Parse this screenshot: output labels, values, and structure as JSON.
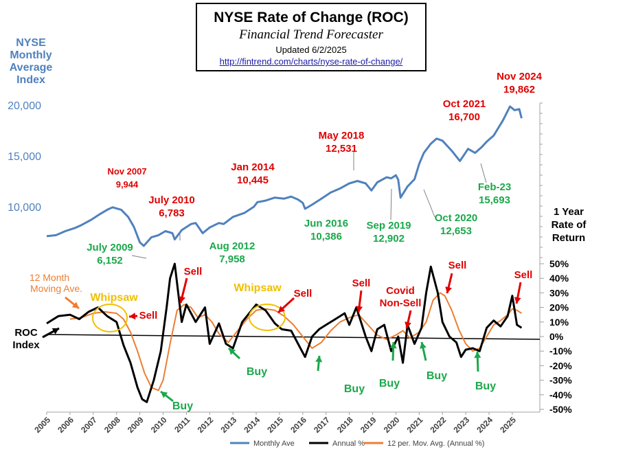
{
  "header": {
    "title": "NYSE  Rate of Change (ROC)",
    "subtitle": "Financial Trend Forecaster",
    "updated": "Updated 6/2/2025",
    "url": "http://fintrend.com/charts/nyse-rate-of-change/"
  },
  "colors": {
    "nyse": "#4f81bd",
    "roc": "#000000",
    "ma": "#ed7d31",
    "red": "#e00000",
    "green": "#1aa84a",
    "gold": "#f0c000",
    "axis": "#808080"
  },
  "chart_data": {
    "type": "line",
    "x_range": [
      2005,
      2025.8
    ],
    "x_tick_labels": [
      "2005",
      "2006",
      "2007",
      "2008",
      "2009",
      "2010",
      "2011",
      "2012",
      "2013",
      "2014",
      "2015",
      "2016",
      "2017",
      "2018",
      "2019",
      "2020",
      "2021",
      "2022",
      "2023",
      "2024",
      "2025"
    ],
    "top_axis": {
      "label": [
        "NYSE",
        "Monthly",
        "Average",
        "Index"
      ],
      "ticks": [
        "10,000",
        "15,000",
        "20,000"
      ],
      "tick_values": [
        10000,
        15000,
        20000
      ]
    },
    "bottom_axis": {
      "label": [
        "1 Year",
        "Rate of",
        "Return"
      ],
      "ticks": [
        "50%",
        "40%",
        "30%",
        "20%",
        "10%",
        "0%",
        "-10%",
        "-20%",
        "-30%",
        "-40%",
        "-50%"
      ],
      "tick_values": [
        50,
        40,
        30,
        20,
        10,
        0,
        -10,
        -20,
        -30,
        -40,
        -50
      ],
      "ylim": [
        -50,
        50
      ]
    },
    "series": [
      {
        "name": "Monthly Ave",
        "panel": "top",
        "color": "#4f81bd",
        "x": [
          2005.0,
          2005.4,
          2005.8,
          2006.2,
          2006.5,
          2006.9,
          2007.3,
          2007.6,
          2007.83,
          2008.2,
          2008.5,
          2008.75,
          2009.0,
          2009.17,
          2009.5,
          2009.8,
          2010.1,
          2010.4,
          2010.5,
          2010.8,
          2011.2,
          2011.4,
          2011.7,
          2012.0,
          2012.4,
          2012.6,
          2013.0,
          2013.5,
          2013.9,
          2014.05,
          2014.4,
          2014.8,
          2015.2,
          2015.5,
          2015.8,
          2016.0,
          2016.1,
          2016.4,
          2016.8,
          2017.2,
          2017.6,
          2018.0,
          2018.35,
          2018.7,
          2018.95,
          2019.2,
          2019.6,
          2019.8,
          2020.0,
          2020.1,
          2020.2,
          2020.5,
          2020.8,
          2021.0,
          2021.2,
          2021.5,
          2021.75,
          2022.0,
          2022.4,
          2022.75,
          2022.9,
          2023.1,
          2023.4,
          2023.7,
          2023.9,
          2024.2,
          2024.6,
          2024.9,
          2025.1,
          2025.3,
          2025.4
        ],
        "values": [
          7100,
          7200,
          7600,
          7900,
          8200,
          8700,
          9300,
          9700,
          9944,
          9700,
          9000,
          8000,
          6500,
          6152,
          7000,
          7200,
          7600,
          7400,
          6783,
          7700,
          8300,
          8400,
          7400,
          7958,
          8400,
          8300,
          9000,
          9400,
          10000,
          10445,
          10600,
          10900,
          10800,
          11000,
          10700,
          10386,
          9800,
          10200,
          10800,
          11400,
          11800,
          12300,
          12531,
          12300,
          11600,
          12400,
          12900,
          12800,
          13100,
          12653,
          10900,
          12000,
          12700,
          14200,
          15300,
          16200,
          16700,
          16500,
          15500,
          14500,
          15000,
          15693,
          15300,
          15900,
          16400,
          17000,
          18500,
          19862,
          19500,
          19600,
          18700
        ]
      },
      {
        "name": "Annual %",
        "panel": "bottom",
        "color": "#000000",
        "x": [
          2005.0,
          2005.5,
          2006.0,
          2006.4,
          2006.8,
          2007.2,
          2007.6,
          2008.0,
          2008.3,
          2008.6,
          2008.9,
          2009.1,
          2009.3,
          2009.6,
          2009.9,
          2010.15,
          2010.3,
          2010.5,
          2010.8,
          2011.0,
          2011.4,
          2011.8,
          2012.0,
          2012.4,
          2012.7,
          2013.0,
          2013.4,
          2013.8,
          2014.0,
          2014.4,
          2014.8,
          2015.1,
          2015.5,
          2015.9,
          2016.1,
          2016.4,
          2016.7,
          2017.0,
          2017.4,
          2017.8,
          2018.0,
          2018.3,
          2018.7,
          2018.95,
          2019.2,
          2019.5,
          2019.8,
          2020.1,
          2020.3,
          2020.5,
          2020.8,
          2021.1,
          2021.3,
          2021.5,
          2021.8,
          2022.0,
          2022.3,
          2022.6,
          2022.8,
          2023.0,
          2023.3,
          2023.6,
          2023.9,
          2024.2,
          2024.5,
          2024.8,
          2025.0,
          2025.2,
          2025.4
        ],
        "values": [
          9,
          14,
          15,
          12,
          17,
          20,
          14,
          10,
          -6,
          -18,
          -35,
          -43,
          -45,
          -30,
          -10,
          20,
          40,
          50,
          10,
          22,
          10,
          20,
          -5,
          9,
          -5,
          -8,
          10,
          18,
          22,
          18,
          9,
          5,
          4,
          -8,
          -14,
          0,
          5,
          8,
          12,
          16,
          8,
          20,
          0,
          -10,
          5,
          8,
          -10,
          0,
          -18,
          8,
          -5,
          6,
          30,
          48,
          30,
          10,
          0,
          -4,
          -14,
          -9,
          -8,
          -10,
          6,
          11,
          7,
          14,
          28,
          8,
          6
        ]
      },
      {
        "name": "12 per. Mov. Avg. (Annual %)",
        "panel": "bottom",
        "color": "#ed7d31",
        "x": [
          2006.0,
          2006.5,
          2007.0,
          2007.5,
          2008.0,
          2008.3,
          2008.6,
          2008.9,
          2009.2,
          2009.5,
          2009.8,
          2010.0,
          2010.3,
          2010.6,
          2010.9,
          2011.2,
          2011.5,
          2011.8,
          2012.1,
          2012.4,
          2012.8,
          2013.2,
          2013.6,
          2014.0,
          2014.4,
          2014.8,
          2015.2,
          2015.6,
          2016.0,
          2016.4,
          2016.8,
          2017.2,
          2017.6,
          2018.0,
          2018.4,
          2018.8,
          2019.2,
          2019.6,
          2020.0,
          2020.3,
          2020.6,
          2021.0,
          2021.3,
          2021.6,
          2021.9,
          2022.1,
          2022.4,
          2022.7,
          2023.0,
          2023.3,
          2023.6,
          2023.9,
          2024.2,
          2024.5,
          2024.8,
          2025.0,
          2025.2,
          2025.4
        ],
        "values": [
          12,
          13,
          16,
          17,
          16,
          12,
          3,
          -10,
          -25,
          -35,
          -37,
          -30,
          -5,
          18,
          22,
          20,
          13,
          15,
          10,
          2,
          -4,
          4,
          12,
          18,
          19,
          18,
          14,
          8,
          0,
          -8,
          -4,
          4,
          10,
          13,
          15,
          8,
          1,
          -2,
          1,
          4,
          -1,
          3,
          10,
          25,
          30,
          28,
          18,
          5,
          -5,
          -10,
          -8,
          0,
          8,
          11,
          15,
          19,
          18,
          16
        ]
      }
    ],
    "annotations": [
      {
        "text": "Nov 2007",
        "sub": "9,944",
        "color": "red"
      },
      {
        "text": "July 2010",
        "sub": "6,783",
        "color": "red"
      },
      {
        "text": "Jan 2014",
        "sub": "10,445",
        "color": "red"
      },
      {
        "text": "May 2018",
        "sub": "12,531",
        "color": "red"
      },
      {
        "text": "Oct 2021",
        "sub": "16,700",
        "color": "red"
      },
      {
        "text": "Nov 2024",
        "sub": "19,862",
        "color": "red"
      },
      {
        "text": "July 2009",
        "sub": "6,152",
        "color": "green"
      },
      {
        "text": "Aug 2012",
        "sub": "7,958",
        "color": "green"
      },
      {
        "text": "Jun 2016",
        "sub": "10,386",
        "color": "green"
      },
      {
        "text": "Sep 2019",
        "sub": "12,902",
        "color": "green"
      },
      {
        "text": "Oct 2020",
        "sub": "12,653",
        "color": "green"
      },
      {
        "text": "Feb-23",
        "sub": "15,693",
        "color": "green"
      }
    ],
    "signals": {
      "sell": "Sell",
      "buy": "Buy",
      "whipsaw": "Whipsaw",
      "covid": [
        "Covid",
        "Non-Sell"
      ],
      "roc_label": [
        "ROC",
        "Index"
      ],
      "ma_label": [
        "12 Month",
        "Moving Ave."
      ]
    },
    "legend": {
      "placement": "bottom",
      "items": [
        "Monthly Ave",
        "Annual %",
        "12 per. Mov. Avg. (Annual %)"
      ]
    }
  }
}
